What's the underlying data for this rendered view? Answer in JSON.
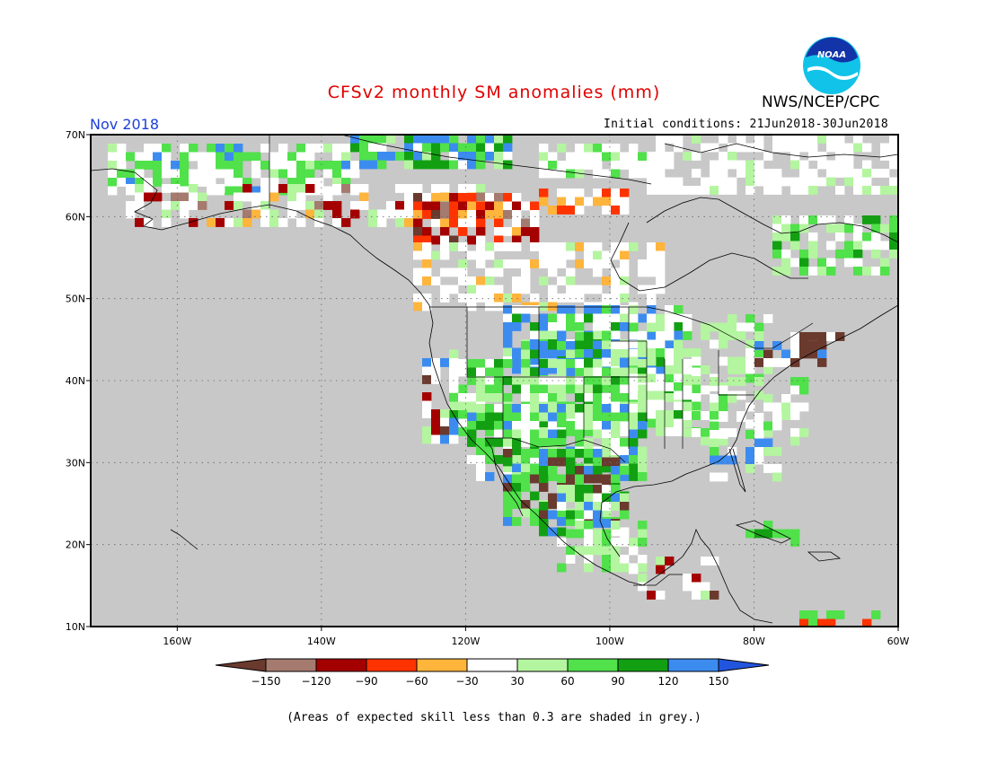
{
  "title": "CFSv2 monthly SM anomalies (mm)",
  "agency": "NWS/NCEP/CPC",
  "logo_text": "NOAA",
  "month_label": "Nov 2018",
  "initial_conditions": "Initial conditions: 21Jun2018-30Jun2018",
  "footnote": "(Areas of expected skill less than 0.3 are shaded in grey.)",
  "map": {
    "lon_range": [
      -172,
      -60
    ],
    "lat_range": [
      10,
      70
    ],
    "lon_ticks": [
      {
        "value": -160,
        "label": "160W"
      },
      {
        "value": -140,
        "label": "140W"
      },
      {
        "value": -120,
        "label": "120W"
      },
      {
        "value": -100,
        "label": "100W"
      },
      {
        "value": -80,
        "label": "80W"
      },
      {
        "value": -60,
        "label": "60W"
      }
    ],
    "lat_ticks": [
      {
        "value": 10,
        "label": "10N"
      },
      {
        "value": 20,
        "label": "20N"
      },
      {
        "value": 30,
        "label": "30N"
      },
      {
        "value": 40,
        "label": "40N"
      },
      {
        "value": 50,
        "label": "50N"
      },
      {
        "value": 60,
        "label": "60N"
      },
      {
        "value": 70,
        "label": "70N"
      }
    ],
    "grid": true,
    "no_skill_color": "#c8c8c8"
  },
  "legend": {
    "labels": [
      "-150",
      "-120",
      "-90",
      "-60",
      "-30",
      "30",
      "60",
      "90",
      "120",
      "150"
    ],
    "colors": [
      "#6a3a2e",
      "#a57b6f",
      "#a40000",
      "#ff3300",
      "#ffb43c",
      "#ffffff",
      "#b4f5a0",
      "#50e14b",
      "#12a012",
      "#3c8cf0",
      "#2255dd"
    ]
  }
}
